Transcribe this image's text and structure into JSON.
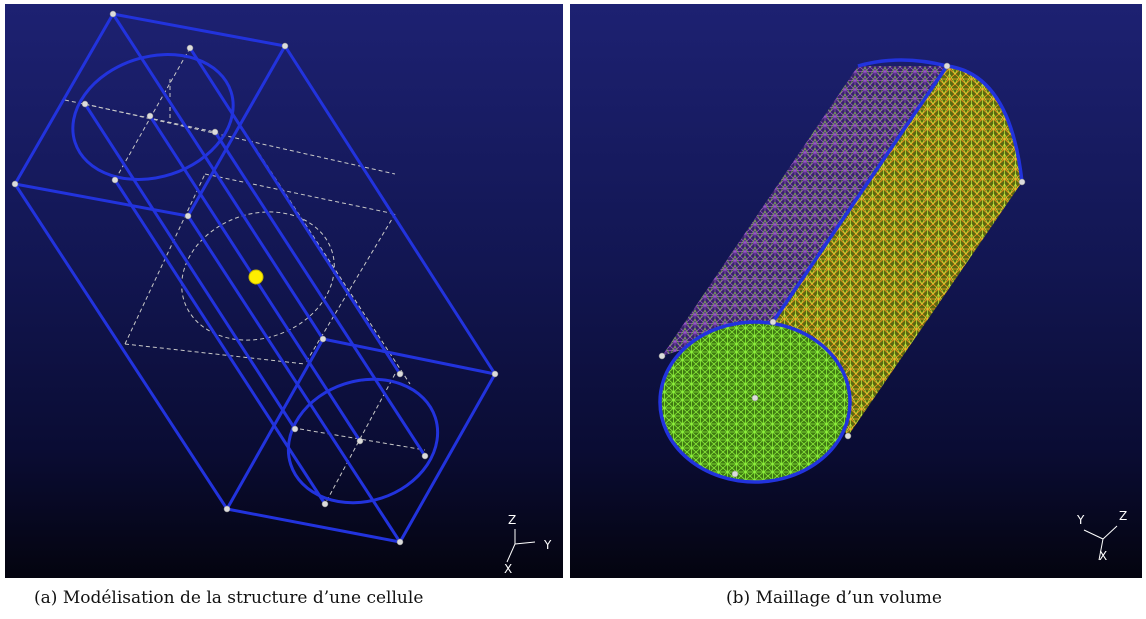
{
  "figures": [
    {
      "label": "(a)",
      "caption": "Modélisation de la structure d’une cellule",
      "axes": {
        "z": "Z",
        "y": "Y",
        "x": "X"
      }
    },
    {
      "label": "(b)",
      "caption": "Maillage d’un volume",
      "axes": {
        "y": "Y",
        "z": "Z",
        "x": "X"
      }
    }
  ],
  "colors": {
    "wire": "#2233dd",
    "guide": "#c8c8c8",
    "center_point": "#ffee00",
    "mesh_green": "#66dd22",
    "mesh_orange": "#ff9a22",
    "mesh_purple": "#9b55c8"
  }
}
